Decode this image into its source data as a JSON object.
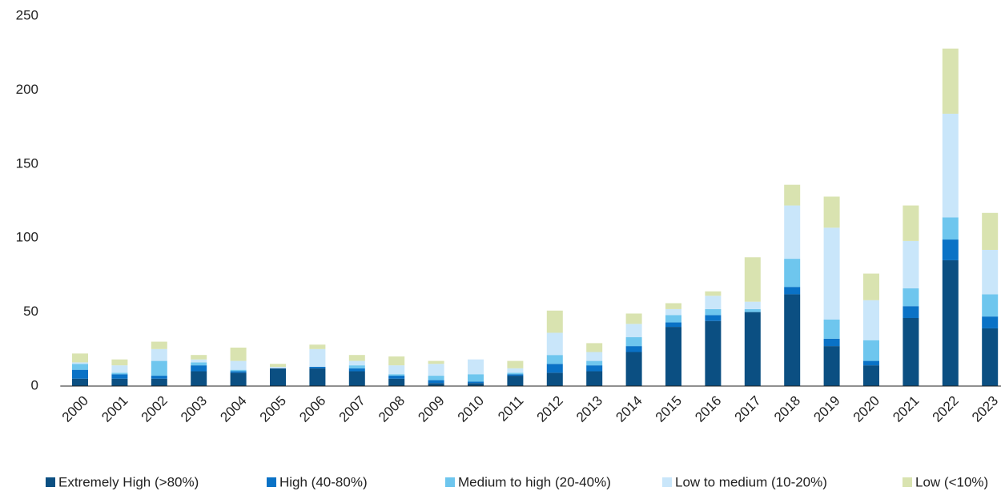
{
  "chart_data": {
    "type": "bar",
    "stacked": true,
    "categories": [
      "2000",
      "2001",
      "2002",
      "2003",
      "2004",
      "2005",
      "2006",
      "2007",
      "2008",
      "2009",
      "2010",
      "2011",
      "2012",
      "2013",
      "2014",
      "2015",
      "2016",
      "2017",
      "2018",
      "2019",
      "2020",
      "2021",
      "2022",
      "2023"
    ],
    "series": [
      {
        "name": "Extremely High (>80%)",
        "color": "#0b4f82",
        "values": [
          5,
          5,
          5,
          10,
          9,
          12,
          12,
          10,
          5,
          2,
          2,
          7,
          9,
          10,
          23,
          40,
          44,
          50,
          62,
          27,
          14,
          46,
          85,
          39
        ]
      },
      {
        "name": "High (40-80%)",
        "color": "#0a72c6",
        "values": [
          6,
          3,
          2,
          4,
          1,
          0,
          1,
          2,
          2,
          2,
          1,
          1,
          6,
          4,
          4,
          3,
          4,
          0,
          5,
          5,
          3,
          8,
          14,
          8
        ]
      },
      {
        "name": "Medium to high (20-40%)",
        "color": "#6ec6ee",
        "values": [
          4,
          1,
          10,
          2,
          1,
          0,
          0,
          2,
          1,
          3,
          5,
          1,
          6,
          3,
          6,
          5,
          4,
          2,
          19,
          13,
          14,
          12,
          15,
          15
        ]
      },
      {
        "name": "Low to medium (10-20%)",
        "color": "#c9e6fa",
        "values": [
          1,
          5,
          8,
          2,
          6,
          1,
          12,
          3,
          6,
          8,
          10,
          3,
          15,
          6,
          9,
          4,
          9,
          5,
          36,
          62,
          27,
          32,
          70,
          30
        ]
      },
      {
        "name": "Low (<10%)",
        "color": "#d9e3b0",
        "values": [
          6,
          4,
          5,
          3,
          9,
          2,
          3,
          4,
          6,
          2,
          0,
          5,
          15,
          6,
          7,
          4,
          3,
          30,
          14,
          21,
          18,
          24,
          44,
          25
        ]
      }
    ],
    "ylim": [
      0,
      250
    ],
    "yticks": [
      0,
      50,
      100,
      150,
      200,
      250
    ],
    "grid": false,
    "legend": "bottom"
  }
}
